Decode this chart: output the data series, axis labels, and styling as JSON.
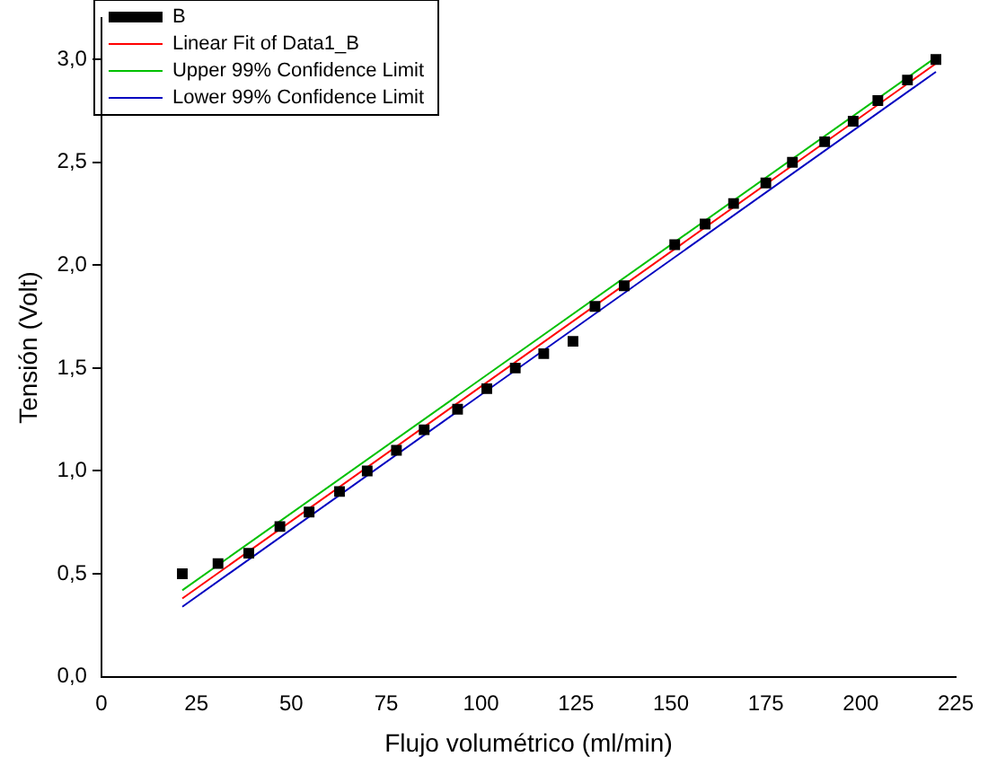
{
  "chart_data": {
    "type": "line",
    "xlabel": "Flujo volumétrico (ml/min)",
    "ylabel": "Tensión (Volt)",
    "xlim": [
      0,
      225
    ],
    "xticks": [
      0,
      25,
      50,
      75,
      100,
      125,
      150,
      175,
      200,
      225
    ],
    "ylim": [
      0,
      3.2
    ],
    "yticks": [
      {
        "value": 0,
        "label": "0,0"
      },
      {
        "value": 0.5,
        "label": "0,5"
      },
      {
        "value": 1,
        "label": "1,0"
      },
      {
        "value": 1.5,
        "label": "1,5"
      },
      {
        "value": 2,
        "label": "2,0"
      },
      {
        "value": 2.5,
        "label": "2,5"
      },
      {
        "value": 3,
        "label": "3,0"
      }
    ],
    "grid": false,
    "legend": "top left",
    "series": [
      {
        "name": "B",
        "type": "scatter",
        "marker": "square",
        "color": "#000000",
        "x": [
          21.3,
          30.7,
          38.8,
          47,
          54.7,
          62.7,
          70,
          77.7,
          85,
          93.8,
          101.5,
          109,
          116.5,
          124.2,
          130,
          137.7,
          151,
          159,
          166.5,
          175,
          182,
          190.5,
          198,
          204.5,
          212.3,
          219.8
        ],
        "values": [
          0.5,
          0.55,
          0.6,
          0.73,
          0.8,
          0.9,
          1.0,
          1.1,
          1.2,
          1.3,
          1.4,
          1.5,
          1.57,
          1.63,
          1.8,
          1.9,
          2.1,
          2.2,
          2.3,
          2.4,
          2.5,
          2.6,
          2.7,
          2.8,
          2.9,
          3.0
        ]
      },
      {
        "name": "Linear Fit of Data1_B",
        "marker": "none",
        "color": "#ff0000",
        "x": [
          21.3,
          219.8
        ],
        "values": [
          0.38,
          2.98
        ]
      },
      {
        "name": "Upper 99% Confidence Limit",
        "marker": "none",
        "color": "#00c000",
        "x": [
          21.3,
          219.8
        ],
        "values": [
          0.42,
          3.01
        ]
      },
      {
        "name": "Lower 99% Confidence Limit",
        "marker": "none",
        "color": "#0000c0",
        "x": [
          21.3,
          219.8
        ],
        "values": [
          0.34,
          2.94
        ]
      }
    ]
  }
}
